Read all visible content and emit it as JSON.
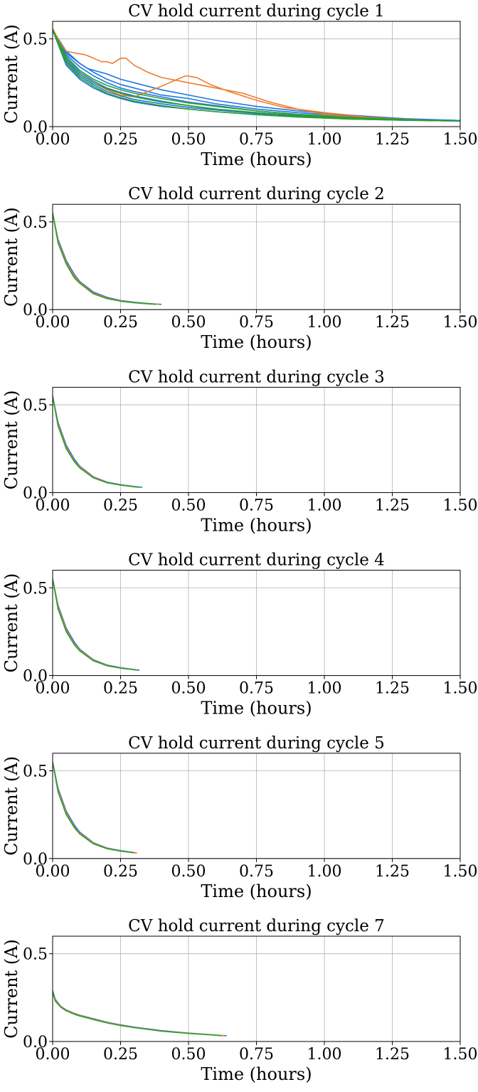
{
  "chart_data": [
    {
      "type": "line",
      "title": "CV hold current during cycle 1",
      "xlabel": "Time (hours)",
      "ylabel": "Current (A)",
      "xlim": [
        0,
        1.5
      ],
      "ylim": [
        0,
        0.6
      ],
      "xticks": [
        "0.00",
        "0.25",
        "0.50",
        "0.75",
        "1.00",
        "1.25",
        "1.50"
      ],
      "yticks": [
        "0.0",
        "0.5"
      ],
      "grid": true,
      "series": [
        {
          "color": "#1f77e0",
          "x": [
            0,
            0.05,
            0.1,
            0.15,
            0.2,
            0.25,
            0.3,
            0.4,
            0.5,
            0.6,
            0.75,
            0.9,
            1.1,
            1.3,
            1.5
          ],
          "y": [
            0.55,
            0.43,
            0.36,
            0.31,
            0.27,
            0.24,
            0.22,
            0.18,
            0.16,
            0.13,
            0.1,
            0.08,
            0.06,
            0.04,
            0.035
          ]
        },
        {
          "color": "#1f77e0",
          "x": [
            0,
            0.05,
            0.1,
            0.15,
            0.2,
            0.25,
            0.3,
            0.4,
            0.5,
            0.6,
            0.75,
            0.9,
            1.1,
            1.3,
            1.5
          ],
          "y": [
            0.55,
            0.41,
            0.34,
            0.29,
            0.25,
            0.22,
            0.2,
            0.17,
            0.14,
            0.12,
            0.09,
            0.07,
            0.055,
            0.04,
            0.035
          ]
        },
        {
          "color": "#1f77e0",
          "x": [
            0,
            0.05,
            0.1,
            0.15,
            0.2,
            0.25,
            0.3,
            0.4,
            0.5,
            0.6,
            0.75,
            0.9,
            1.1,
            1.3,
            1.5
          ],
          "y": [
            0.55,
            0.39,
            0.31,
            0.26,
            0.22,
            0.195,
            0.175,
            0.145,
            0.12,
            0.1,
            0.08,
            0.065,
            0.05,
            0.04,
            0.035
          ]
        },
        {
          "color": "#1f77e0",
          "x": [
            0,
            0.05,
            0.1,
            0.15,
            0.2,
            0.25,
            0.3,
            0.4,
            0.5,
            0.6,
            0.75,
            0.9,
            1.1,
            1.3,
            1.5
          ],
          "y": [
            0.55,
            0.37,
            0.29,
            0.24,
            0.2,
            0.175,
            0.155,
            0.13,
            0.11,
            0.095,
            0.075,
            0.06,
            0.045,
            0.038,
            0.033
          ]
        },
        {
          "color": "#1f77e0",
          "x": [
            0,
            0.05,
            0.1,
            0.15,
            0.2,
            0.25,
            0.3,
            0.4,
            0.5,
            0.6,
            0.75,
            0.9,
            1.1,
            1.3,
            1.5
          ],
          "y": [
            0.55,
            0.35,
            0.27,
            0.22,
            0.185,
            0.16,
            0.14,
            0.115,
            0.1,
            0.085,
            0.068,
            0.055,
            0.043,
            0.036,
            0.032
          ]
        },
        {
          "color": "#1f77e0",
          "x": [
            0,
            0.05,
            0.1,
            0.13,
            0.2,
            0.25,
            0.3,
            0.4,
            0.5,
            0.6,
            0.75,
            0.9,
            1.1,
            1.3,
            1.5
          ],
          "y": [
            0.55,
            0.42,
            0.36,
            0.33,
            0.3,
            0.27,
            0.25,
            0.21,
            0.18,
            0.15,
            0.115,
            0.09,
            0.065,
            0.045,
            0.035
          ]
        },
        {
          "color": "#ef7b2e",
          "x": [
            0,
            0.03,
            0.05,
            0.08,
            0.12,
            0.15,
            0.18,
            0.2,
            0.22,
            0.25,
            0.27,
            0.3,
            0.35,
            0.4,
            0.5,
            0.6,
            0.7,
            0.8,
            0.9,
            1.0,
            1.1,
            1.2,
            1.3,
            1.4
          ],
          "y": [
            0.56,
            0.47,
            0.43,
            0.42,
            0.41,
            0.39,
            0.37,
            0.37,
            0.36,
            0.39,
            0.39,
            0.35,
            0.31,
            0.28,
            0.25,
            0.22,
            0.19,
            0.14,
            0.1,
            0.07,
            0.055,
            0.045,
            0.04,
            0.035
          ]
        },
        {
          "color": "#ef7b2e",
          "x": [
            0,
            0.05,
            0.1,
            0.15,
            0.2,
            0.25,
            0.3,
            0.35,
            0.4,
            0.43,
            0.46,
            0.49,
            0.53,
            0.58,
            0.65,
            0.75,
            0.85,
            1.0,
            1.15,
            1.3,
            1.4
          ],
          "y": [
            0.55,
            0.38,
            0.3,
            0.25,
            0.21,
            0.18,
            0.17,
            0.2,
            0.23,
            0.25,
            0.27,
            0.29,
            0.28,
            0.24,
            0.2,
            0.15,
            0.11,
            0.08,
            0.055,
            0.04,
            0.033
          ]
        },
        {
          "color": "#2ca02c",
          "x": [
            0,
            0.05,
            0.1,
            0.15,
            0.2,
            0.25,
            0.3,
            0.4,
            0.5,
            0.6,
            0.75,
            0.9,
            1.1,
            1.3,
            1.5
          ],
          "y": [
            0.55,
            0.36,
            0.28,
            0.23,
            0.19,
            0.165,
            0.145,
            0.12,
            0.1,
            0.085,
            0.068,
            0.055,
            0.043,
            0.036,
            0.032
          ]
        },
        {
          "color": "#2ca02c",
          "x": [
            0,
            0.05,
            0.1,
            0.15,
            0.2,
            0.25,
            0.3,
            0.4,
            0.5,
            0.6,
            0.75,
            0.9,
            1.1,
            1.3,
            1.45
          ],
          "y": [
            0.55,
            0.38,
            0.3,
            0.25,
            0.215,
            0.19,
            0.17,
            0.14,
            0.12,
            0.1,
            0.08,
            0.063,
            0.048,
            0.038,
            0.033
          ]
        },
        {
          "color": "#2ca02c",
          "x": [
            0,
            0.05,
            0.1,
            0.15,
            0.2,
            0.25,
            0.3,
            0.4,
            0.5,
            0.6,
            0.75,
            0.9,
            1.1,
            1.3,
            1.4
          ],
          "y": [
            0.55,
            0.4,
            0.32,
            0.27,
            0.235,
            0.21,
            0.19,
            0.16,
            0.135,
            0.115,
            0.09,
            0.07,
            0.052,
            0.04,
            0.034
          ]
        }
      ]
    },
    {
      "type": "line",
      "title": "CV hold current during cycle 2",
      "xlabel": "Time (hours)",
      "ylabel": "Current (A)",
      "xlim": [
        0,
        1.5
      ],
      "ylim": [
        0,
        0.6
      ],
      "xticks": [
        "0.00",
        "0.25",
        "0.50",
        "0.75",
        "1.00",
        "1.25",
        "1.50"
      ],
      "yticks": [
        "0.0",
        "0.5"
      ],
      "grid": true,
      "series": [
        {
          "color": "#1f77e0",
          "x": [
            0,
            0.02,
            0.05,
            0.08,
            0.1,
            0.15,
            0.2,
            0.25,
            0.3,
            0.35,
            0.4
          ],
          "y": [
            0.55,
            0.4,
            0.28,
            0.2,
            0.16,
            0.1,
            0.07,
            0.052,
            0.042,
            0.035,
            0.03
          ]
        },
        {
          "color": "#ef7b2e",
          "x": [
            0,
            0.02,
            0.05,
            0.08,
            0.1,
            0.15,
            0.2,
            0.25,
            0.3,
            0.35,
            0.39
          ],
          "y": [
            0.55,
            0.39,
            0.27,
            0.19,
            0.155,
            0.095,
            0.066,
            0.05,
            0.04,
            0.034,
            0.03
          ]
        },
        {
          "color": "#2ca02c",
          "x": [
            0,
            0.02,
            0.05,
            0.08,
            0.1,
            0.15,
            0.2,
            0.25,
            0.3,
            0.35,
            0.38
          ],
          "y": [
            0.55,
            0.38,
            0.26,
            0.18,
            0.15,
            0.09,
            0.063,
            0.048,
            0.039,
            0.033,
            0.03
          ]
        }
      ]
    },
    {
      "type": "line",
      "title": "CV hold current during cycle 3",
      "xlabel": "Time (hours)",
      "ylabel": "Current (A)",
      "xlim": [
        0,
        1.5
      ],
      "ylim": [
        0,
        0.6
      ],
      "xticks": [
        "0.00",
        "0.25",
        "0.50",
        "0.75",
        "1.00",
        "1.25",
        "1.50"
      ],
      "yticks": [
        "0.0",
        "0.5"
      ],
      "grid": true,
      "series": [
        {
          "color": "#1f77e0",
          "x": [
            0,
            0.02,
            0.05,
            0.08,
            0.1,
            0.15,
            0.2,
            0.25,
            0.3,
            0.33
          ],
          "y": [
            0.55,
            0.4,
            0.27,
            0.19,
            0.15,
            0.09,
            0.06,
            0.045,
            0.035,
            0.03
          ]
        },
        {
          "color": "#ef7b2e",
          "x": [
            0,
            0.02,
            0.05,
            0.08,
            0.1,
            0.15,
            0.2,
            0.25,
            0.3,
            0.32
          ],
          "y": [
            0.55,
            0.39,
            0.26,
            0.18,
            0.145,
            0.087,
            0.058,
            0.043,
            0.034,
            0.03
          ]
        },
        {
          "color": "#2ca02c",
          "x": [
            0,
            0.02,
            0.05,
            0.08,
            0.1,
            0.15,
            0.2,
            0.25,
            0.3,
            0.32
          ],
          "y": [
            0.55,
            0.38,
            0.25,
            0.175,
            0.14,
            0.084,
            0.056,
            0.042,
            0.033,
            0.03
          ]
        }
      ]
    },
    {
      "type": "line",
      "title": "CV hold current during cycle 4",
      "xlabel": "Time (hours)",
      "ylabel": "Current (A)",
      "xlim": [
        0,
        1.5
      ],
      "ylim": [
        0,
        0.6
      ],
      "xticks": [
        "0.00",
        "0.25",
        "0.50",
        "0.75",
        "1.00",
        "1.25",
        "1.50"
      ],
      "yticks": [
        "0.0",
        "0.5"
      ],
      "grid": true,
      "series": [
        {
          "color": "#1f77e0",
          "x": [
            0,
            0.02,
            0.05,
            0.08,
            0.1,
            0.15,
            0.2,
            0.25,
            0.3,
            0.32
          ],
          "y": [
            0.55,
            0.4,
            0.27,
            0.19,
            0.15,
            0.09,
            0.06,
            0.045,
            0.035,
            0.03
          ]
        },
        {
          "color": "#ef7b2e",
          "x": [
            0,
            0.02,
            0.05,
            0.08,
            0.1,
            0.15,
            0.2,
            0.25,
            0.3,
            0.31
          ],
          "y": [
            0.55,
            0.39,
            0.26,
            0.18,
            0.145,
            0.087,
            0.058,
            0.043,
            0.034,
            0.031
          ]
        },
        {
          "color": "#2ca02c",
          "x": [
            0,
            0.02,
            0.05,
            0.08,
            0.1,
            0.15,
            0.2,
            0.25,
            0.3,
            0.31
          ],
          "y": [
            0.55,
            0.38,
            0.25,
            0.175,
            0.14,
            0.084,
            0.056,
            0.042,
            0.033,
            0.031
          ]
        }
      ]
    },
    {
      "type": "line",
      "title": "CV hold current during cycle 5",
      "xlabel": "Time (hours)",
      "ylabel": "Current (A)",
      "xlim": [
        0,
        1.5
      ],
      "ylim": [
        0,
        0.6
      ],
      "xticks": [
        "0.00",
        "0.25",
        "0.50",
        "0.75",
        "1.00",
        "1.25",
        "1.50"
      ],
      "yticks": [
        "0.0",
        "0.5"
      ],
      "grid": true,
      "series": [
        {
          "color": "#1f77e0",
          "x": [
            0,
            0.02,
            0.05,
            0.08,
            0.1,
            0.15,
            0.2,
            0.25,
            0.3,
            0.31
          ],
          "y": [
            0.55,
            0.4,
            0.27,
            0.19,
            0.15,
            0.09,
            0.06,
            0.045,
            0.034,
            0.031
          ]
        },
        {
          "color": "#ef7b2e",
          "x": [
            0,
            0.02,
            0.05,
            0.08,
            0.1,
            0.15,
            0.2,
            0.25,
            0.3,
            0.31
          ],
          "y": [
            0.55,
            0.39,
            0.26,
            0.18,
            0.145,
            0.087,
            0.058,
            0.043,
            0.033,
            0.031
          ]
        },
        {
          "color": "#2ca02c",
          "x": [
            0,
            0.02,
            0.05,
            0.08,
            0.1,
            0.15,
            0.2,
            0.25,
            0.3
          ],
          "y": [
            0.55,
            0.38,
            0.25,
            0.175,
            0.14,
            0.084,
            0.056,
            0.042,
            0.033
          ]
        }
      ]
    },
    {
      "type": "line",
      "title": "CV hold current during cycle 7",
      "xlabel": "Time (hours)",
      "ylabel": "Current (A)",
      "xlim": [
        0,
        1.5
      ],
      "ylim": [
        0,
        0.6
      ],
      "xticks": [
        "0.00",
        "0.25",
        "0.50",
        "0.75",
        "1.00",
        "1.25",
        "1.50"
      ],
      "yticks": [
        "0.0",
        "0.5"
      ],
      "grid": true,
      "series": [
        {
          "color": "#1f77e0",
          "x": [
            0,
            0.01,
            0.03,
            0.05,
            0.08,
            0.1,
            0.15,
            0.2,
            0.25,
            0.3,
            0.4,
            0.5,
            0.6,
            0.64
          ],
          "y": [
            0.29,
            0.24,
            0.2,
            0.18,
            0.16,
            0.15,
            0.13,
            0.11,
            0.095,
            0.082,
            0.062,
            0.048,
            0.037,
            0.033
          ]
        },
        {
          "color": "#ef7b2e",
          "x": [
            0,
            0.01,
            0.03,
            0.05,
            0.08,
            0.1,
            0.15,
            0.2,
            0.25,
            0.3,
            0.4,
            0.5,
            0.6,
            0.63
          ],
          "y": [
            0.285,
            0.235,
            0.198,
            0.178,
            0.158,
            0.148,
            0.128,
            0.108,
            0.093,
            0.08,
            0.06,
            0.047,
            0.036,
            0.033
          ]
        },
        {
          "color": "#2ca02c",
          "x": [
            0,
            0.01,
            0.03,
            0.05,
            0.08,
            0.1,
            0.15,
            0.2,
            0.25,
            0.3,
            0.4,
            0.5,
            0.6,
            0.62
          ],
          "y": [
            0.28,
            0.23,
            0.195,
            0.175,
            0.155,
            0.145,
            0.125,
            0.106,
            0.091,
            0.079,
            0.059,
            0.046,
            0.036,
            0.033
          ]
        }
      ]
    }
  ]
}
